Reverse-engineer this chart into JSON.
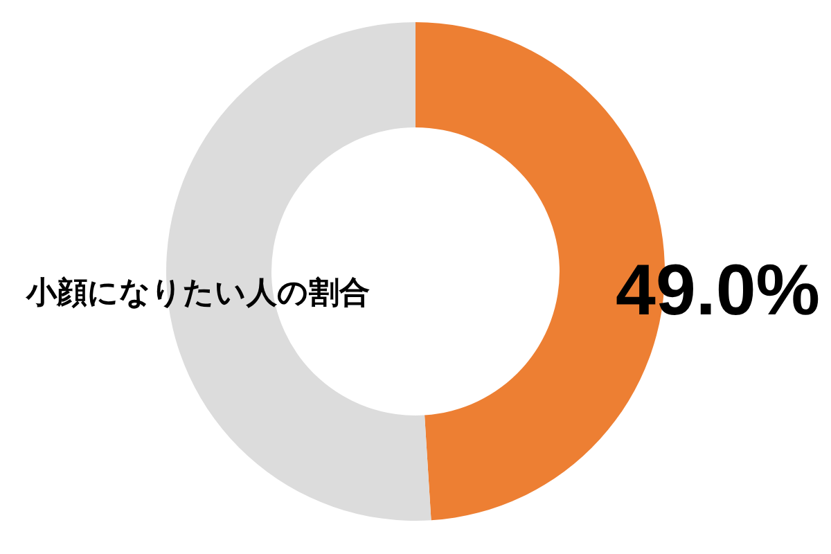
{
  "chart_data": {
    "type": "donut",
    "title": "小顔になりたい人の割合",
    "categories": [
      null,
      null
    ],
    "values": [
      49.0,
      51.0
    ],
    "colors": [
      "#ed7f33",
      "#dcdcdc"
    ],
    "value_labels": [
      "49.0%",
      null
    ]
  }
}
